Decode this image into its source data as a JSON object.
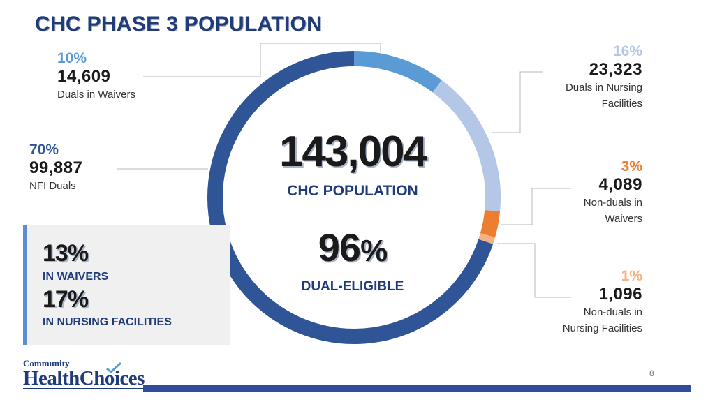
{
  "title": "CHC PHASE 3 POPULATION",
  "center": {
    "total": "143,004",
    "total_label": "CHC POPULATION",
    "dual_pct_num": "96",
    "dual_pct_sign": "%",
    "dual_label": "DUAL-ELIGIBLE"
  },
  "panel": {
    "waivers_pct": "13%",
    "waivers_label": "IN WAIVERS",
    "nursing_pct": "17%",
    "nursing_label": "IN NURSING FACILITIES"
  },
  "callouts": {
    "waivers_duals": {
      "pct": "10%",
      "num": "14,609",
      "desc": "Duals in Waivers"
    },
    "nfi_duals": {
      "pct": "70%",
      "num": "99,887",
      "desc": "NFI Duals"
    },
    "nursing_duals": {
      "pct": "16%",
      "num": "23,323",
      "desc1": "Duals in Nursing",
      "desc2": "Facilities"
    },
    "nonduals_waivers": {
      "pct": "3%",
      "num": "4,089",
      "desc1": "Non-duals in",
      "desc2": "Waivers"
    },
    "nonduals_nursing": {
      "pct": "1%",
      "num": "1,096",
      "desc1": "Non-duals in",
      "desc2": "Nursing Facilities"
    }
  },
  "logo": {
    "top": "Community",
    "main": "HealthChoices"
  },
  "page_number": "8",
  "chart_data": {
    "type": "pie",
    "donut": true,
    "categories": [
      "Duals in Waivers",
      "Duals in Nursing Facilities",
      "Non-duals in Waivers",
      "Non-duals in Nursing Facilities",
      "NFI Duals"
    ],
    "values": [
      14609,
      23323,
      4089,
      1096,
      99887
    ],
    "percent_labels": [
      "10%",
      "16%",
      "3%",
      "1%",
      "70%"
    ],
    "colors": [
      "#5b9bd5",
      "#b4c7e7",
      "#ed7d31",
      "#f4b183",
      "#2f5597"
    ],
    "total": 143004
  }
}
